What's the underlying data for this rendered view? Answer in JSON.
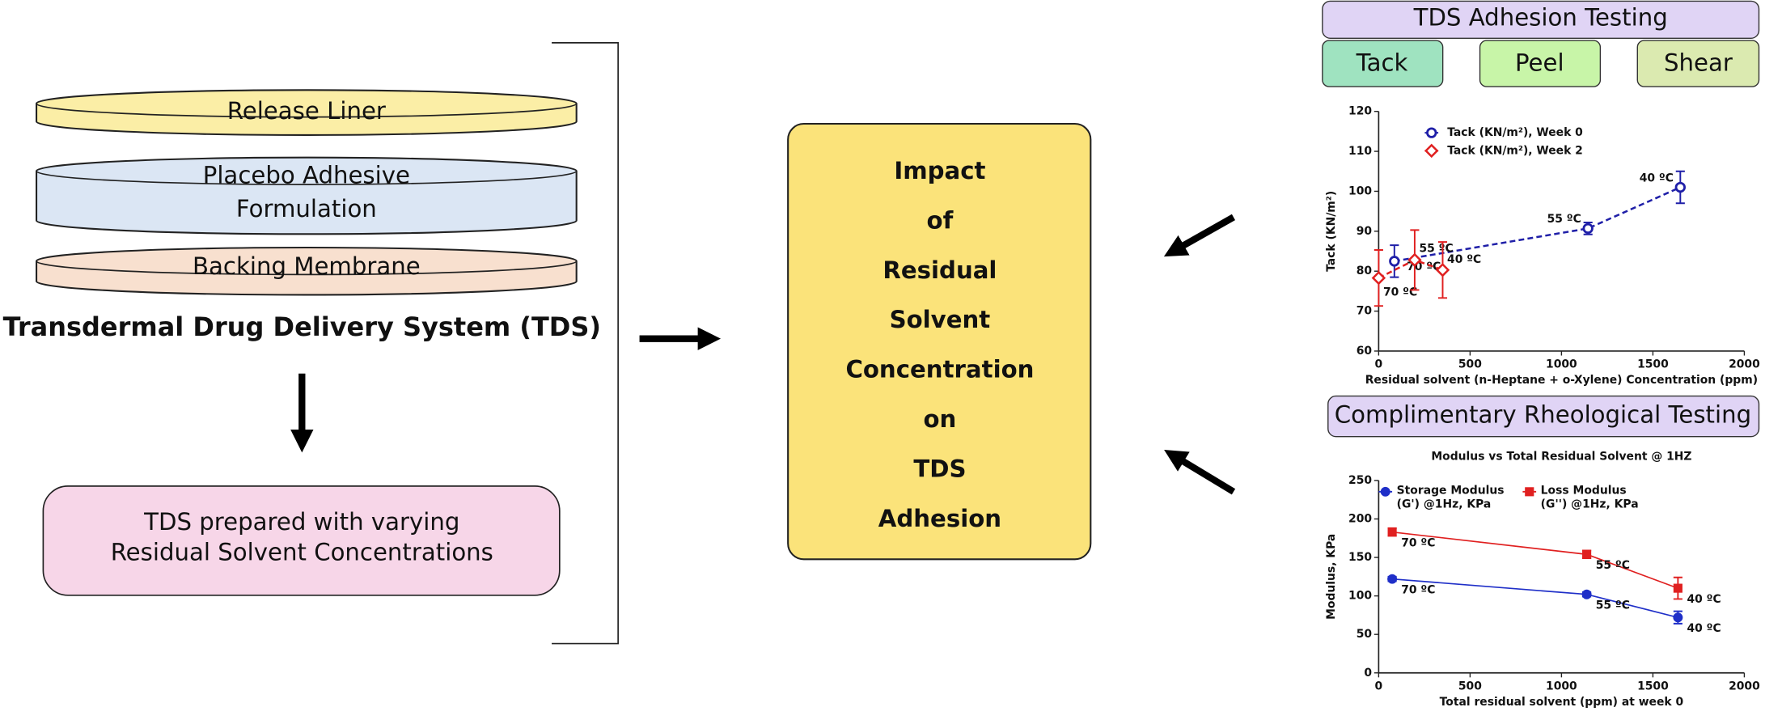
{
  "layers": [
    {
      "lines": [
        "Release Liner"
      ]
    },
    {
      "lines": [
        "Placebo Adhesive",
        "Formulation"
      ]
    },
    {
      "lines": [
        "Backing Membrane"
      ]
    }
  ],
  "system_label": "Transdermal Drug Delivery System (TDS)",
  "prepared_box": {
    "lines": [
      "TDS prepared with varying",
      "Residual Solvent Concentrations"
    ]
  },
  "central_box": {
    "lines": [
      "Impact",
      "of",
      "Residual",
      "Solvent",
      "Concentration",
      "on",
      "TDS",
      "Adhesion"
    ]
  },
  "adhesion_header": "TDS Adhesion Testing",
  "adhesion_tests": [
    "Tack",
    "Peel",
    "Shear"
  ],
  "rheology_header": "Complimentary Rheological Testing",
  "chart_data": [
    {
      "type": "line",
      "x_label": "Residual solvent (n-Heptane + o-Xylene) Concentration (ppm)",
      "y_label": "Tack (KN/m²)",
      "xlim": [
        0,
        2000
      ],
      "xticks": [
        0,
        500,
        1000,
        1500,
        2000
      ],
      "ylim": [
        60,
        120
      ],
      "yticks": [
        60,
        70,
        80,
        90,
        100,
        110,
        120
      ],
      "legend": "upper left",
      "legend_columns": 1,
      "line_style": "dashed",
      "series": [
        {
          "name": "Tack (KN/m²), Week 0",
          "color": "#1f1fa8",
          "marker": "circle-open",
          "x": [
            86,
            1145,
            1650
          ],
          "values": [
            82.5,
            90.7,
            101
          ],
          "errors": [
            4,
            1.5,
            4
          ],
          "point_labels": [
            "70 ºC",
            "55 ºC",
            "40 ºC"
          ]
        },
        {
          "name": "Tack (KN/m²), Week 2",
          "color": "#e02020",
          "marker": "diamond",
          "x": [
            0,
            197,
            350
          ],
          "values": [
            78.3,
            82.8,
            80.3
          ],
          "errors": [
            7,
            7.5,
            7
          ],
          "point_labels": [
            "70 ºC",
            "55 ºC",
            "40 ºC"
          ]
        }
      ]
    },
    {
      "type": "line",
      "title": "Modulus vs Total Residual Solvent @ 1HZ",
      "x_label": "Total residual solvent (ppm) at week 0",
      "y_label": "Modulus, KPa",
      "xlim": [
        0,
        2000
      ],
      "xticks": [
        0,
        500,
        1000,
        1500,
        2000
      ],
      "ylim": [
        0,
        250
      ],
      "yticks": [
        0,
        50,
        100,
        150,
        200,
        250
      ],
      "legend": "upper left",
      "legend_columns": 2,
      "line_style": "solid",
      "series": [
        {
          "name": "Storage Modulus (G') @1Hz, KPa",
          "color": "#1f2fc8",
          "marker": "circle",
          "x": [
            74,
            1138,
            1637
          ],
          "values": [
            122,
            102,
            72
          ],
          "errors": [
            3,
            3,
            8
          ],
          "point_labels": [
            "70 ºC",
            "55 ºC",
            "40 ºC"
          ]
        },
        {
          "name": "Loss Modulus (G'') @1Hz, KPa",
          "color": "#e02020",
          "marker": "square",
          "x": [
            74,
            1138,
            1637
          ],
          "values": [
            183,
            154,
            110
          ],
          "errors": [
            5,
            5,
            14
          ],
          "point_labels": [
            "70 ºC",
            "55 ºC",
            "40 ºC"
          ]
        }
      ]
    }
  ]
}
